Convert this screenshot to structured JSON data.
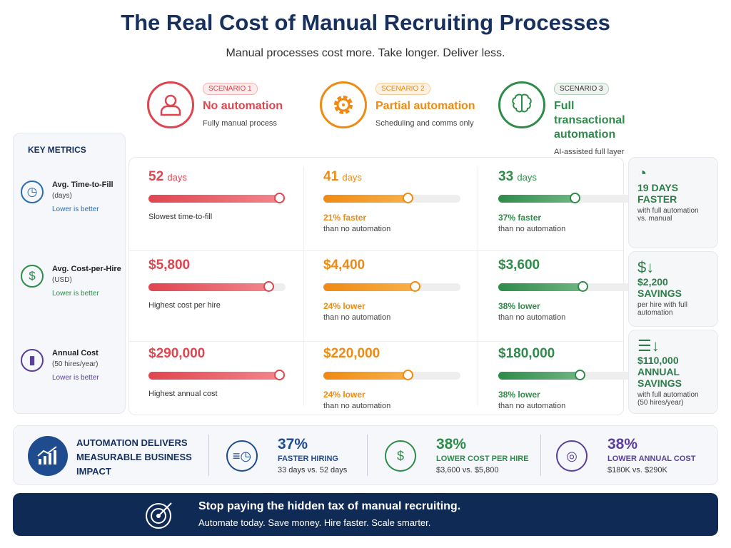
{
  "title": "The Real Cost of Manual Recruiting Processes",
  "subtitle": "Manual processes cost more. Take longer. Deliver less.",
  "colors": {
    "red": "#e0454f",
    "orange": "#ef8a12",
    "green": "#2e8b4a",
    "navy": "#17305e",
    "purple": "#5b3f9a",
    "blue": "#2b6cb0"
  },
  "scenarios": [
    {
      "badge": "SCENARIO 1",
      "title": "No automation",
      "desc": "Fully manual process",
      "icon": "user-icon"
    },
    {
      "badge": "SCENARIO 2",
      "title": "Partial automation",
      "desc": "Scheduling and comms only",
      "icon": "gear-icon"
    },
    {
      "badge": "SCENARIO 3",
      "title": "Full transactional automation",
      "desc": "AI-assisted full layer",
      "icon": "brain-icon"
    }
  ],
  "key_metrics": {
    "heading": "KEY METRICS",
    "items": [
      {
        "label": "Avg. Time-to-Fill",
        "unit": "(days)",
        "hint": "Lower is better",
        "icon": "clock-icon"
      },
      {
        "label": "Avg. Cost-per-Hire",
        "unit": "(USD)",
        "hint": "Lower is better",
        "icon": "dollar-icon"
      },
      {
        "label": "Annual Cost",
        "unit": "(50 hires/year)",
        "hint": "Lower is better",
        "icon": "bar-chart-icon"
      }
    ]
  },
  "rows": [
    [
      {
        "value": "52",
        "unit": "days",
        "fill": 0.96,
        "note": "Slowest time-to-fill",
        "note2": ""
      },
      {
        "value": "41",
        "unit": "days",
        "fill": 0.62,
        "note": "21% faster",
        "note2": "than no automation"
      },
      {
        "value": "33",
        "unit": "days",
        "fill": 0.56,
        "note": "37% faster",
        "note2": "than no automation"
      }
    ],
    [
      {
        "value": "$5,800",
        "unit": "",
        "fill": 0.88,
        "note": "Highest cost per hire",
        "note2": ""
      },
      {
        "value": "$4,400",
        "unit": "",
        "fill": 0.67,
        "note": "24% lower",
        "note2": "than no automation"
      },
      {
        "value": "$3,600",
        "unit": "",
        "fill": 0.62,
        "note": "38% lower",
        "note2": "than no automation"
      }
    ],
    [
      {
        "value": "$290,000",
        "unit": "",
        "fill": 0.96,
        "note": "Highest annual cost",
        "note2": ""
      },
      {
        "value": "$220,000",
        "unit": "",
        "fill": 0.62,
        "note": "24% lower",
        "note2": "than no automation"
      },
      {
        "value": "$180,000",
        "unit": "",
        "fill": 0.6,
        "note": "38% lower",
        "note2": "than no automation"
      }
    ]
  ],
  "savings": [
    {
      "big": "19 DAYS",
      "big2": "FASTER",
      "desc": "with full automation vs. manual",
      "icon": "speedometer-icon"
    },
    {
      "big": "$2,200",
      "big2": "SAVINGS",
      "desc": "per hire with full automation",
      "icon": "dollar-down-icon"
    },
    {
      "big": "$110,000",
      "big2": "ANNUAL SAVINGS",
      "desc": "with full automation (50 hires/year)",
      "icon": "coins-down-icon"
    }
  ],
  "impact": {
    "heading": "AUTOMATION DELIVERS MEASURABLE BUSINESS IMPACT",
    "items": [
      {
        "pct": "37%",
        "label": "FASTER HIRING",
        "detail": "33 days vs. 52 days",
        "icon": "fast-clock-icon"
      },
      {
        "pct": "38%",
        "label": "LOWER COST PER HIRE",
        "detail": "$3,600 vs. $5,800",
        "icon": "dollar-circle-icon"
      },
      {
        "pct": "38%",
        "label": "LOWER ANNUAL COST",
        "detail": "$180K vs. $290K",
        "icon": "coins-icon"
      }
    ]
  },
  "cta": {
    "title": "Stop paying the hidden tax of manual recruiting.",
    "subtitle": "Automate today. Save money. Hire faster. Scale smarter.",
    "icon": "target-icon"
  },
  "chart_data": {
    "type": "bar",
    "categories": [
      "No automation",
      "Partial automation",
      "Full transactional automation"
    ],
    "series": [
      {
        "name": "Avg. Time-to-Fill (days)",
        "values": [
          52,
          41,
          33
        ]
      },
      {
        "name": "Avg. Cost-per-Hire (USD)",
        "values": [
          5800,
          4400,
          3600
        ]
      },
      {
        "name": "Annual Cost (50 hires/year)",
        "values": [
          290000,
          220000,
          180000
        ]
      }
    ]
  }
}
